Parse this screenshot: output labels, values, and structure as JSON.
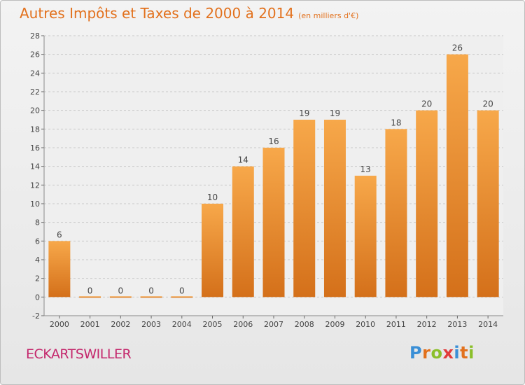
{
  "header": {
    "title": "Autres Impôts et Taxes de 2000 à 2014",
    "subtitle": "(en milliers d'€)"
  },
  "footer": {
    "commune": "ECKARTSWILLER",
    "logo": "Proxiti"
  },
  "colors": {
    "bar_top": "#f7a84a",
    "bar_bottom": "#d4701a",
    "title": "#e2711d",
    "commune": "#c4276c",
    "grid": "#c8c8c8"
  },
  "chart_data": {
    "type": "bar",
    "categories": [
      "2000",
      "2001",
      "2002",
      "2003",
      "2004",
      "2005",
      "2006",
      "2007",
      "2008",
      "2009",
      "2010",
      "2011",
      "2012",
      "2013",
      "2014"
    ],
    "values": [
      6,
      0,
      0,
      0,
      0,
      10,
      14,
      16,
      19,
      19,
      13,
      18,
      20,
      26,
      20
    ],
    "data_labels": [
      "6",
      "0",
      "0",
      "0",
      "0",
      "10",
      "14",
      "16",
      "19",
      "19",
      "13",
      "18",
      "20",
      "26",
      "20"
    ],
    "y_ticks": [
      "-2",
      "0",
      "2",
      "4",
      "6",
      "8",
      "10",
      "12",
      "14",
      "16",
      "18",
      "20",
      "22",
      "24",
      "26",
      "28"
    ],
    "ylim": [
      -2,
      28
    ],
    "grid": true,
    "title": "Autres Impôts et Taxes de 2000 à 2014",
    "xlabel": "",
    "ylabel": ""
  }
}
